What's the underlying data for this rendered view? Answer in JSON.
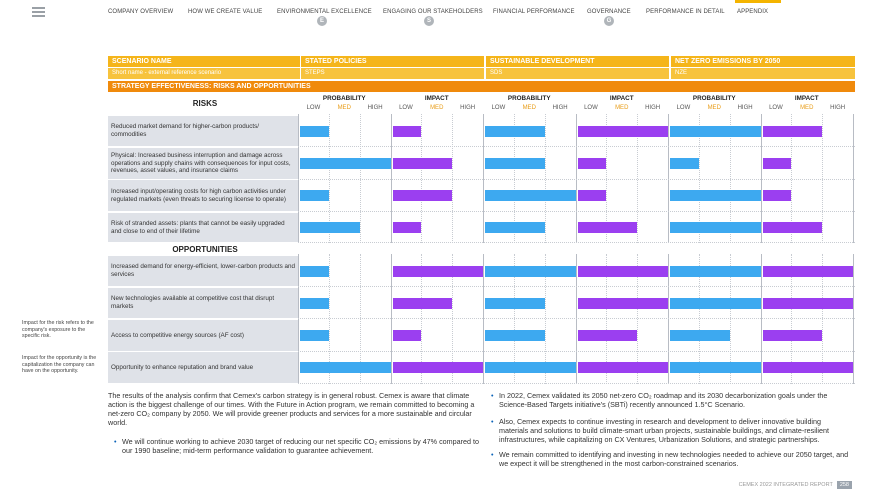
{
  "nav": {
    "items": [
      {
        "label": "COMPANY OVERVIEW"
      },
      {
        "label": "HOW WE CREATE VALUE"
      },
      {
        "label": "ENVIRONMENTAL EXCELLENCE",
        "badge": "E"
      },
      {
        "label": "ENGAGING OUR STAKEHOLDERS",
        "badge": "S"
      },
      {
        "label": "FINANCIAL PERFORMANCE"
      },
      {
        "label": "GOVERNANCE",
        "badge": "G"
      },
      {
        "label": "PERFORMANCE IN DETAIL"
      },
      {
        "label": "APPENDIX"
      }
    ]
  },
  "sidebar": {
    "note1": "Impact for the risk refers to the company's exposure to the specific risk.",
    "note2": "Impact for the opportunity is the capitalization the company can have on the opportunity."
  },
  "table": {
    "scenario_name_label": "SCENARIO NAME",
    "short_name_label": "Short name - external reference scenario",
    "strategy_label": "STRATEGY EFFECTIVENESS: RISKS AND OPPORTUNITIES",
    "scenarios": [
      {
        "name": "STATED POLICIES",
        "short": "STEPS"
      },
      {
        "name": "SUSTAINABLE DEVELOPMENT",
        "short": "SDS"
      },
      {
        "name": "NET ZERO EMISSIONS BY 2050",
        "short": "NZE"
      }
    ],
    "probability_label": "PROBABILITY",
    "impact_label": "IMPACT",
    "levels": [
      "LOW",
      "MED",
      "HIGH"
    ],
    "risks_title": "RISKS",
    "opportunities_title": "OPPORTUNITIES",
    "risks": [
      {
        "label": "Reduced market demand for higher-carbon products/ commodities",
        "ratings": [
          [
            1,
            1
          ],
          [
            2,
            3
          ],
          [
            3,
            2
          ]
        ]
      },
      {
        "label": "Physical: Increased business interruption and damage across operations and supply chains with consequences for input costs, revenues, asset values, and insurance claims",
        "ratings": [
          [
            3,
            2
          ],
          [
            2,
            1
          ],
          [
            1,
            1
          ]
        ]
      },
      {
        "label": "Increased input/operating costs for high carbon activities under regulated markets (even threats to securing license to operate)",
        "ratings": [
          [
            1,
            2
          ],
          [
            3,
            1
          ],
          [
            3,
            1
          ]
        ]
      },
      {
        "label": "Risk of stranded assets: plants that cannot be easily upgraded and close to end of their lifetime",
        "ratings": [
          [
            2,
            1
          ],
          [
            2,
            2
          ],
          [
            3,
            2
          ]
        ]
      }
    ],
    "opportunities": [
      {
        "label": "Increased demand for energy-efficient, lower-carbon products and services",
        "ratings": [
          [
            1,
            3
          ],
          [
            3,
            3
          ],
          [
            3,
            3
          ]
        ]
      },
      {
        "label": "New technologies available at competitive cost that disrupt markets",
        "ratings": [
          [
            1,
            2
          ],
          [
            2,
            3
          ],
          [
            3,
            3
          ]
        ]
      },
      {
        "label": "Access to competitive energy sources (AF cost)",
        "ratings": [
          [
            1,
            1
          ],
          [
            2,
            2
          ],
          [
            2,
            2
          ]
        ]
      },
      {
        "label": "Opportunity to enhance reputation and brand value",
        "ratings": [
          [
            3,
            3
          ],
          [
            3,
            3
          ],
          [
            3,
            3
          ]
        ]
      }
    ]
  },
  "text": {
    "intro": "The results of the analysis confirm that Cemex's carbon strategy is in general robust. Cemex is aware that climate action is the biggest challenge of our times. With the Future in Action program, we remain committed to becoming a net-zero CO₂ company by 2050. We will provide greener products and services for a more sustainable and circular world.",
    "bullet_left": "We will continue working to achieve 2030 target of reducing our net specific CO₂ emissions by 47% compared to our 1990 baseline; mid-term performance validation to guarantee achievement.",
    "bullet_right_1": "In 2022, Cemex validated its 2050 net-zero CO₂ roadmap and its 2030 decarbonization goals under the Science-Based Targets initiative's (SBTi) recently announced 1.5°C Scenario.",
    "bullet_right_2": "Also, Cemex expects to continue investing in research and development to deliver innovative building materials and solutions to build climate-smart urban projects, sustainable buildings, and climate-resilient infrastructures, while capitalizing on CX Ventures, Urbanization Solutions, and strategic partnerships.",
    "bullet_right_3": "We remain committed to identifying and investing in new technologies needed to achieve our 2050 target, and we expect it will be strengthened in the most carbon-constrained scenarios."
  },
  "footer": {
    "report": "CEMEX 2022 INTEGRATED REPORT",
    "page": "258"
  },
  "colors": {
    "probability_bar": "#3da9f0",
    "impact_bar": "#9b3ff0",
    "header": "#f5b51a",
    "strategy_header": "#f08a0c",
    "row_label_bg": "#dfe2e8"
  }
}
